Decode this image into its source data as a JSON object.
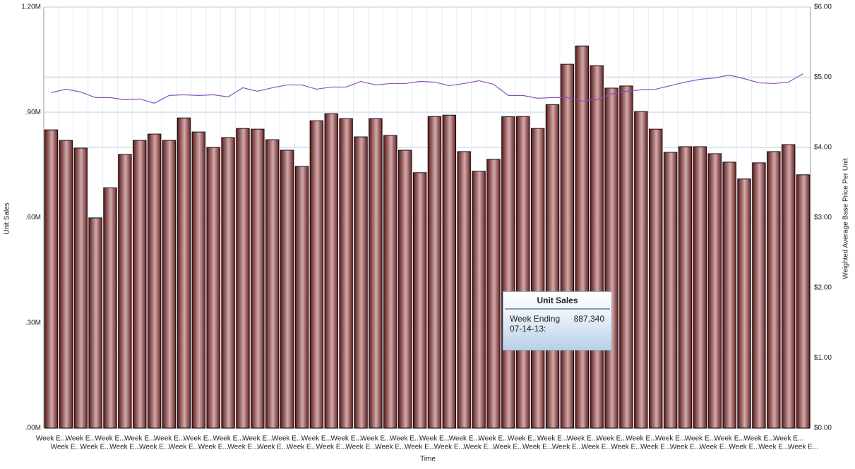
{
  "chart_data": {
    "type": "bar",
    "x_label": "Time",
    "y_label": "Unit Sales",
    "y2_label": "Weighted Average Base Price Per Unit",
    "categories": [
      "Week E...",
      "Week E...",
      "Week E...",
      "Week E...",
      "Week E...",
      "Week E...",
      "Week E...",
      "Week E...",
      "Week E...",
      "Week E...",
      "Week E...",
      "Week E...",
      "Week E...",
      "Week E...",
      "Week E...",
      "Week E...",
      "Week E...",
      "Week E...",
      "Week E...",
      "Week E...",
      "Week E...",
      "Week E...",
      "Week E...",
      "Week E...",
      "Week E...",
      "Week E...",
      "Week E...",
      "Week E...",
      "Week E...",
      "Week E...",
      "Week E...",
      "Week E...",
      "Week E...",
      "Week E...",
      "Week E...",
      "Week E...",
      "Week E...",
      "Week E...",
      "Week E...",
      "Week E...",
      "Week E...",
      "Week E...",
      "Week E...",
      "Week E...",
      "Week E...",
      "Week E...",
      "Week E...",
      "Week E...",
      "Week E...",
      "Week E...",
      "Week E...",
      "Week E..."
    ],
    "series": [
      {
        "name": "Unit Sales",
        "type": "bar",
        "color": "#8b3a3a",
        "values": [
          850000,
          820000,
          798000,
          599000,
          685000,
          780000,
          820000,
          838000,
          820000,
          884000,
          844000,
          800000,
          828000,
          854000,
          852000,
          822000,
          792000,
          746000,
          876000,
          896000,
          882000,
          830000,
          882000,
          834000,
          792000,
          728000,
          888000,
          892000,
          788000,
          732000,
          766000,
          887340,
          888000,
          854000,
          922000,
          1037000,
          1089000,
          1033000,
          969000,
          975000,
          902000,
          852000,
          786000,
          802000,
          802000,
          782000,
          758000,
          710000,
          756000,
          788000,
          808000,
          722000
        ]
      },
      {
        "name": "Weighted Average Base Price Per Unit",
        "type": "line",
        "axis": "y2",
        "color": "#8a4fc0",
        "values": [
          4.78,
          4.83,
          4.79,
          4.71,
          4.71,
          4.68,
          4.69,
          4.63,
          4.74,
          4.75,
          4.74,
          4.75,
          4.72,
          4.85,
          4.8,
          4.85,
          4.89,
          4.89,
          4.83,
          4.86,
          4.86,
          4.94,
          4.89,
          4.91,
          4.91,
          4.94,
          4.93,
          4.88,
          4.91,
          4.95,
          4.9,
          4.74,
          4.74,
          4.7,
          4.71,
          4.71,
          4.66,
          4.68,
          4.76,
          4.8,
          4.82,
          4.83,
          4.88,
          4.93,
          4.97,
          4.99,
          5.03,
          4.98,
          4.92,
          4.91,
          4.93,
          5.05
        ]
      }
    ],
    "ylim": [
      0,
      1200000
    ],
    "yticks": [
      {
        "value": 0,
        "label": ".00M"
      },
      {
        "value": 300000,
        "label": ".30M"
      },
      {
        "value": 600000,
        "label": ".60M"
      },
      {
        "value": 900000,
        "label": ".90M"
      },
      {
        "value": 1200000,
        "label": "1.20M"
      }
    ],
    "y2lim": [
      0,
      6
    ],
    "y2ticks": [
      {
        "value": 0,
        "label": "$0.00"
      },
      {
        "value": 1,
        "label": "$1.00"
      },
      {
        "value": 2,
        "label": "$2.00"
      },
      {
        "value": 3,
        "label": "$3.00"
      },
      {
        "value": 4,
        "label": "$4.00"
      },
      {
        "value": 5,
        "label": "$5.00"
      },
      {
        "value": 6,
        "label": "$6.00"
      }
    ],
    "grid": true,
    "tooltip": {
      "title": "Unit Sales",
      "label": "Week Ending 07-14-13:",
      "value_label": "887,340"
    }
  }
}
